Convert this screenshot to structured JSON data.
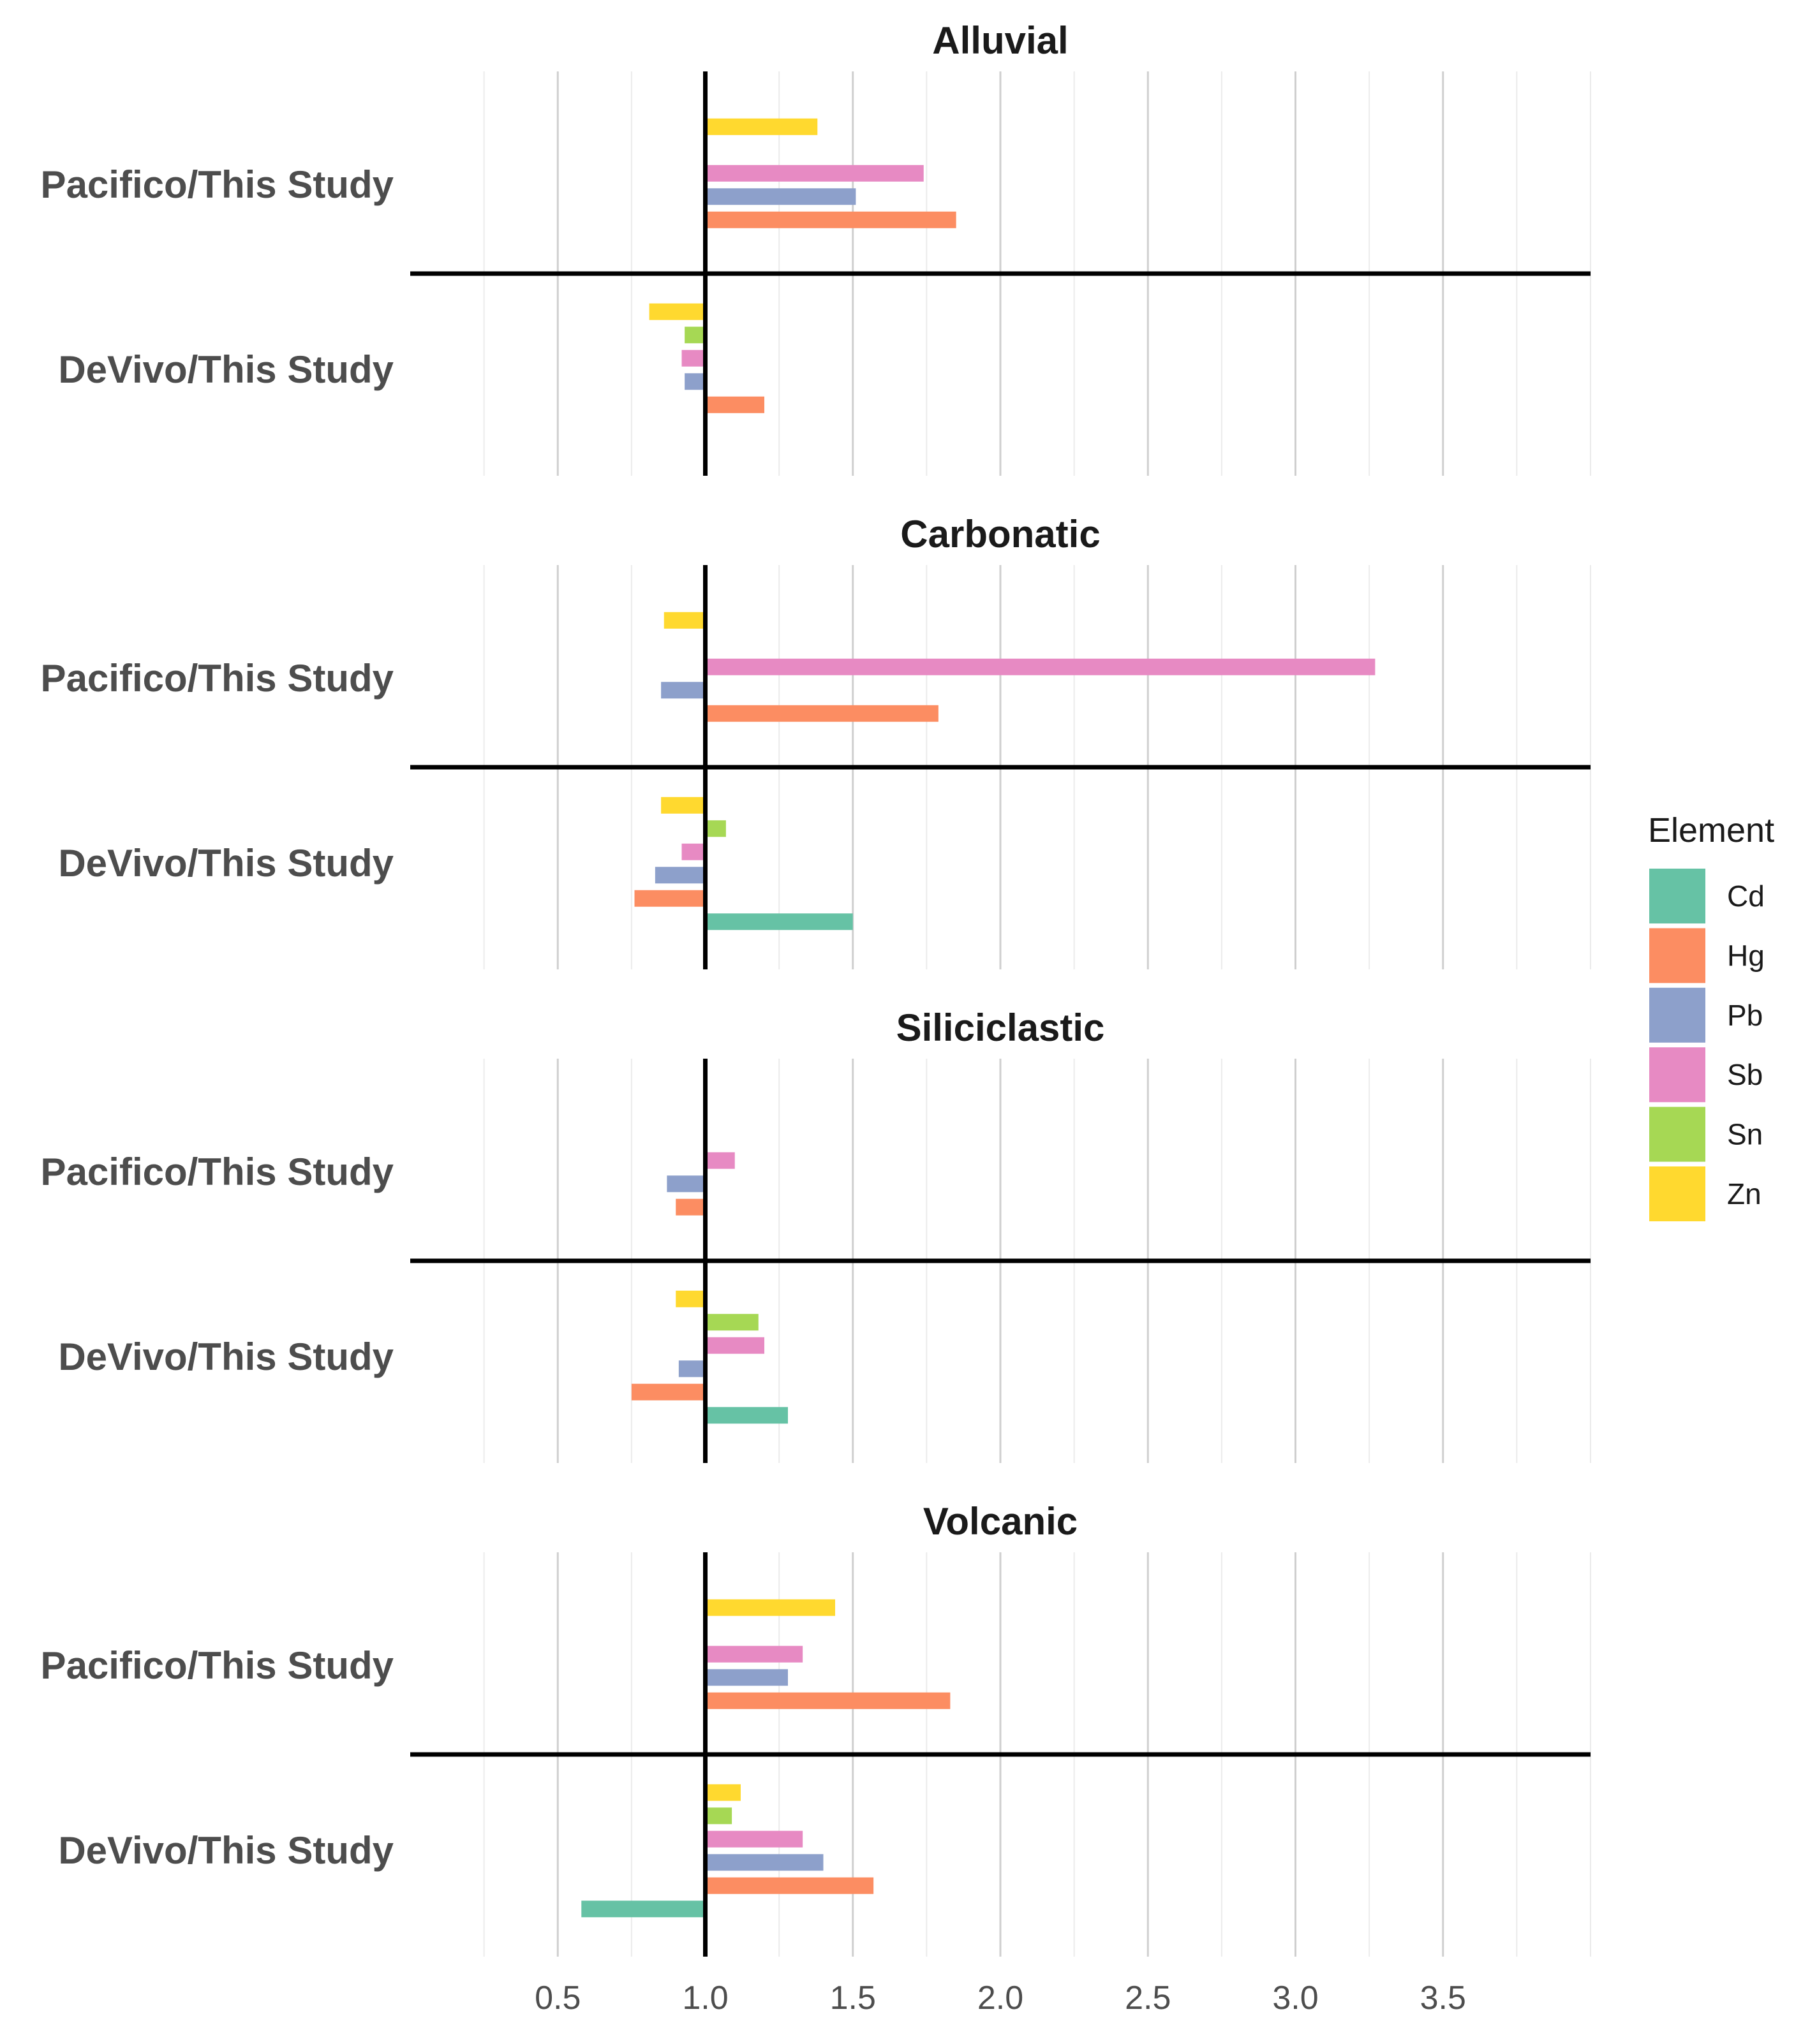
{
  "chart_data": {
    "type": "bar",
    "orientation": "horizontal",
    "baseline": 1.0,
    "xlim": [
      0.0,
      4.0
    ],
    "x_ticks": [
      0.5,
      1.0,
      1.5,
      2.0,
      2.5,
      3.0,
      3.5
    ],
    "x_tick_labels": [
      "0.5",
      "1.0",
      "1.5",
      "2.0",
      "2.5",
      "3.0",
      "3.5"
    ],
    "grid": true,
    "legend": {
      "title": "Element",
      "position": "right",
      "items": [
        {
          "name": "Cd",
          "color": "#66C2A5"
        },
        {
          "name": "Hg",
          "color": "#FC8D62"
        },
        {
          "name": "Pb",
          "color": "#8DA0CB"
        },
        {
          "name": "Sb",
          "color": "#E78AC3"
        },
        {
          "name": "Sn",
          "color": "#A6D854"
        },
        {
          "name": "Zn",
          "color": "#FFD92F"
        }
      ]
    },
    "facets": [
      {
        "title": "Alluvial",
        "rows": [
          {
            "label": "Pacifico/This Study",
            "values": {
              "Cd": null,
              "Hg": 1.85,
              "Pb": 1.51,
              "Sb": 1.74,
              "Sn": null,
              "Zn": 1.38
            }
          },
          {
            "label": "DeVivo/This Study",
            "values": {
              "Cd": null,
              "Hg": 1.2,
              "Pb": 0.93,
              "Sb": 0.92,
              "Sn": 0.93,
              "Zn": 0.81
            }
          }
        ]
      },
      {
        "title": "Carbonatic",
        "rows": [
          {
            "label": "Pacifico/This Study",
            "values": {
              "Cd": null,
              "Hg": 1.79,
              "Pb": 0.85,
              "Sb": 3.27,
              "Sn": null,
              "Zn": 0.86
            }
          },
          {
            "label": "DeVivo/This Study",
            "values": {
              "Cd": 1.5,
              "Hg": 0.76,
              "Pb": 0.83,
              "Sb": 0.92,
              "Sn": 1.07,
              "Zn": 0.85
            }
          }
        ]
      },
      {
        "title": "Siliciclastic",
        "rows": [
          {
            "label": "Pacifico/This Study",
            "values": {
              "Cd": null,
              "Hg": 0.9,
              "Pb": 0.87,
              "Sb": 1.1,
              "Sn": null,
              "Zn": null
            }
          },
          {
            "label": "DeVivo/This Study",
            "values": {
              "Cd": 1.28,
              "Hg": 0.75,
              "Pb": 0.91,
              "Sb": 1.2,
              "Sn": 1.18,
              "Zn": 0.9
            }
          }
        ]
      },
      {
        "title": "Volcanic",
        "rows": [
          {
            "label": "Pacifico/This Study",
            "values": {
              "Cd": null,
              "Hg": 1.83,
              "Pb": 1.28,
              "Sb": 1.33,
              "Sn": null,
              "Zn": 1.44
            }
          },
          {
            "label": "DeVivo/This Study",
            "values": {
              "Cd": 0.58,
              "Hg": 1.57,
              "Pb": 1.4,
              "Sb": 1.33,
              "Sn": 1.09,
              "Zn": 1.12
            }
          }
        ]
      }
    ]
  }
}
